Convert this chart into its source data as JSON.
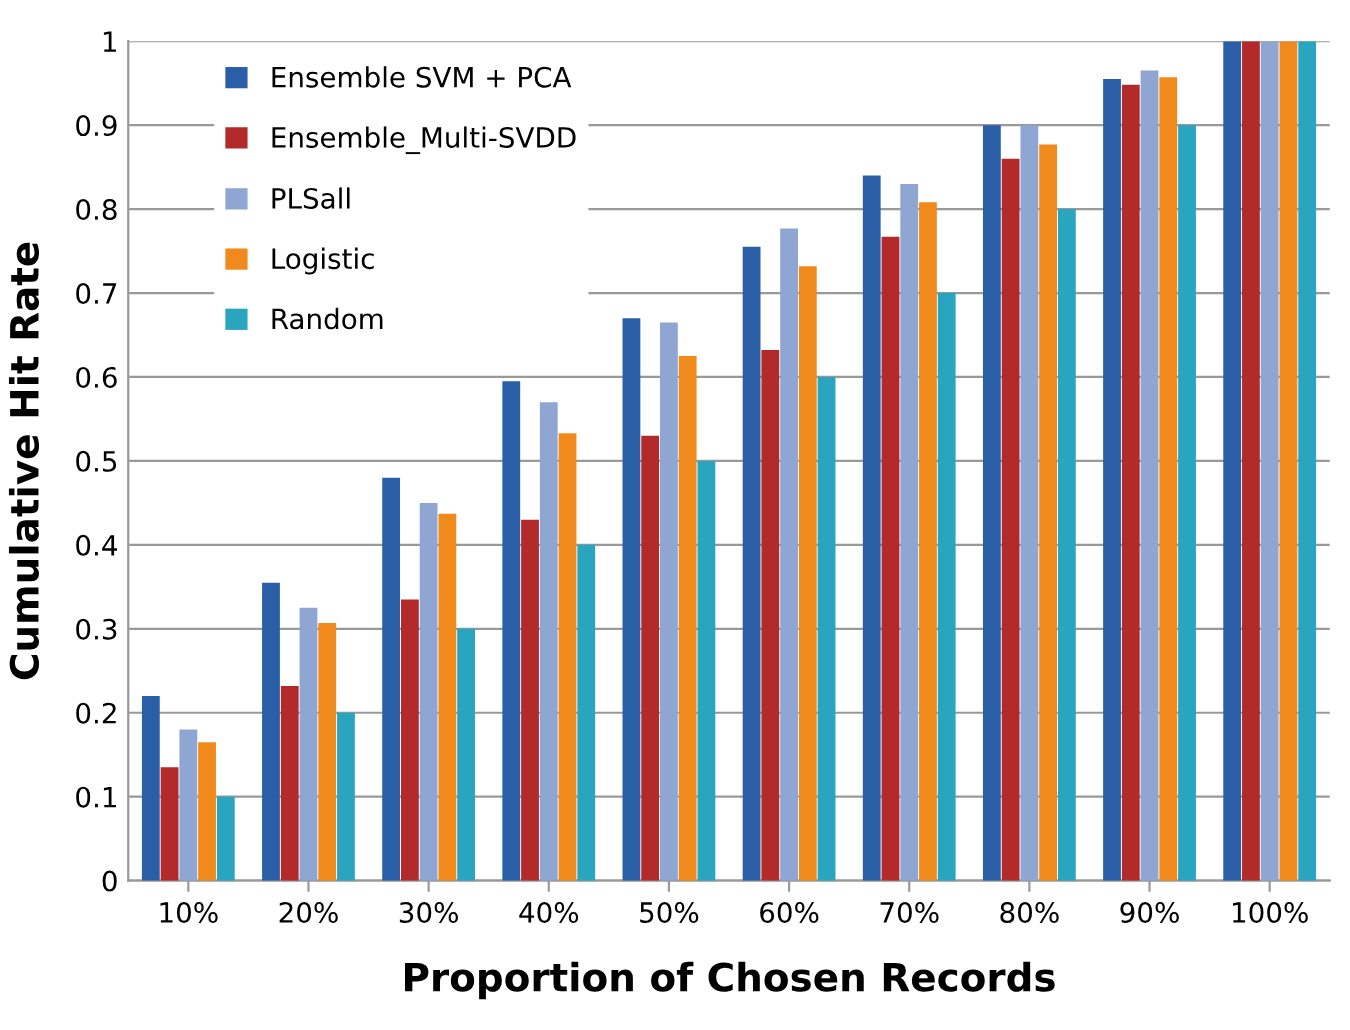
{
  "chart_data": {
    "type": "bar",
    "xlabel": "Proportion of Chosen Records",
    "ylabel": "Cumulative Hit Rate",
    "categories": [
      "10%",
      "20%",
      "30%",
      "40%",
      "50%",
      "60%",
      "70%",
      "80%",
      "90%",
      "100%"
    ],
    "series": [
      {
        "name": "Ensemble SVM + PCA",
        "color": "#2a5fa8",
        "values": [
          0.22,
          0.355,
          0.48,
          0.595,
          0.67,
          0.755,
          0.84,
          0.9,
          0.955,
          1.0
        ]
      },
      {
        "name": "Ensemble_Multi-SVDD",
        "color": "#b22a2a",
        "values": [
          0.135,
          0.232,
          0.335,
          0.43,
          0.53,
          0.632,
          0.767,
          0.86,
          0.948,
          1.0
        ]
      },
      {
        "name": "PLSall",
        "color": "#8fa6d3",
        "values": [
          0.18,
          0.325,
          0.45,
          0.57,
          0.665,
          0.777,
          0.83,
          0.9,
          0.965,
          1.0
        ]
      },
      {
        "name": "Logistic",
        "color": "#f08a1c",
        "values": [
          0.165,
          0.307,
          0.437,
          0.533,
          0.625,
          0.732,
          0.808,
          0.877,
          0.957,
          1.0
        ]
      },
      {
        "name": "Random",
        "color": "#2aa5c0",
        "values": [
          0.1,
          0.2,
          0.3,
          0.4,
          0.5,
          0.6,
          0.7,
          0.8,
          0.9,
          1.0
        ]
      }
    ],
    "ylim": [
      0,
      1
    ],
    "yticks": [
      0,
      0.1,
      0.2,
      0.3,
      0.4,
      0.5,
      0.6,
      0.7,
      0.8,
      0.9,
      1
    ],
    "grid": "y",
    "legend": "top left"
  }
}
